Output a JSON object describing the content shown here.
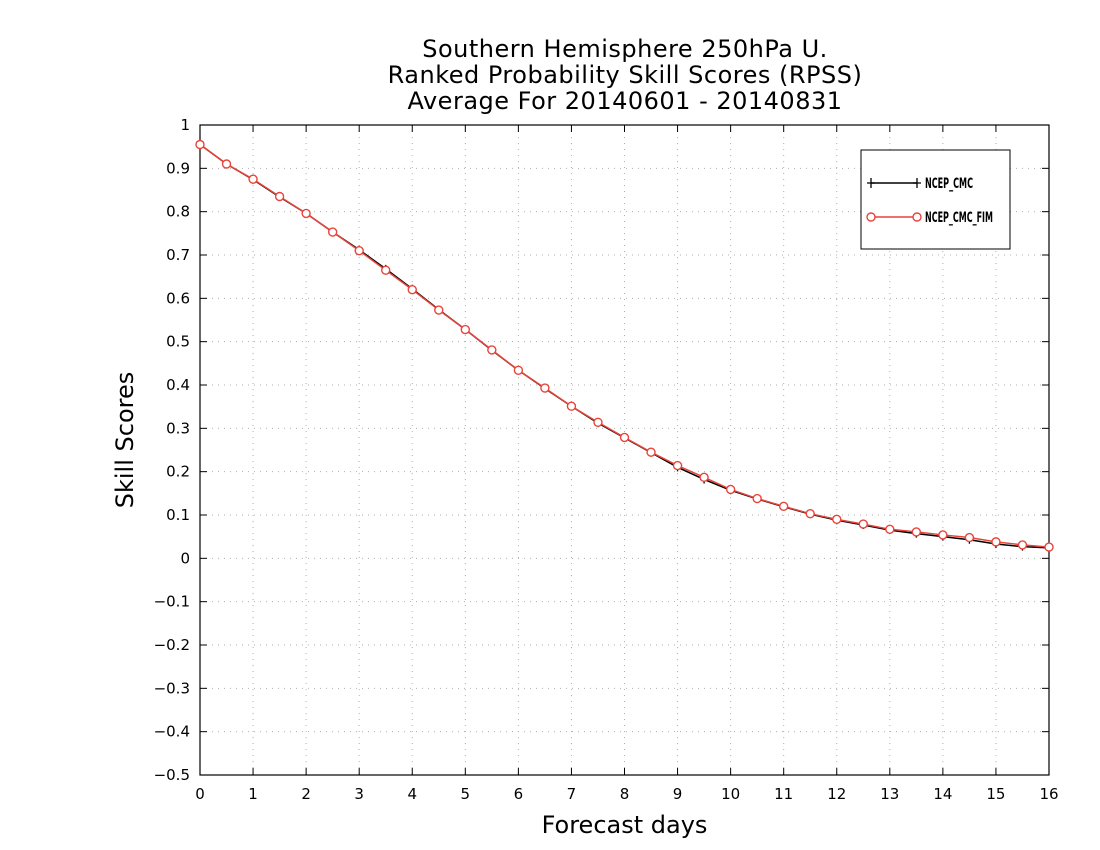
{
  "chart_data": {
    "type": "line",
    "title": [
      "Southern Hemisphere 250hPa U.",
      "Ranked Probability Skill Scores (RPSS)",
      "Average For 20140601 - 20140831"
    ],
    "xlabel": "Forecast days",
    "ylabel": "Skill Scores",
    "xlim": [
      0,
      16
    ],
    "ylim": [
      -0.5,
      1
    ],
    "xticks": [
      0,
      1,
      2,
      3,
      4,
      5,
      6,
      7,
      8,
      9,
      10,
      11,
      12,
      13,
      14,
      15,
      16
    ],
    "yticks": [
      -0.5,
      -0.4,
      -0.3,
      -0.2,
      -0.1,
      0,
      0.1,
      0.2,
      0.3,
      0.4,
      0.5,
      0.6,
      0.7,
      0.8,
      0.9,
      1
    ],
    "ytick_labels": [
      "−0.5",
      "−0.4",
      "−0.3",
      "−0.2",
      "−0.1",
      "0",
      "0.1",
      "0.2",
      "0.3",
      "0.4",
      "0.5",
      "0.6",
      "0.7",
      "0.8",
      "0.9",
      "1"
    ],
    "grid": true,
    "legend_position": "top-right",
    "x": [
      0,
      0.5,
      1,
      1.5,
      2,
      2.5,
      3,
      3.5,
      4,
      4.5,
      5,
      5.5,
      6,
      6.5,
      7,
      7.5,
      8,
      8.5,
      9,
      9.5,
      10,
      10.5,
      11,
      11.5,
      12,
      12.5,
      13,
      13.5,
      14,
      14.5,
      15,
      15.5,
      16
    ],
    "series": [
      {
        "name": "NCEP_CMC",
        "color": "#000000",
        "marker": "plus",
        "values": [
          0.955,
          0.91,
          0.874,
          0.834,
          0.796,
          0.753,
          0.712,
          0.668,
          0.622,
          0.574,
          0.528,
          0.48,
          0.434,
          0.392,
          0.351,
          0.312,
          0.278,
          0.244,
          0.21,
          0.182,
          0.157,
          0.137,
          0.119,
          0.102,
          0.088,
          0.077,
          0.065,
          0.057,
          0.05,
          0.043,
          0.033,
          0.027,
          0.024
        ]
      },
      {
        "name": "NCEP_CMC_FIM",
        "color": "#e8443a",
        "marker": "circle",
        "values": [
          0.955,
          0.91,
          0.875,
          0.835,
          0.796,
          0.753,
          0.71,
          0.665,
          0.62,
          0.573,
          0.528,
          0.481,
          0.434,
          0.393,
          0.351,
          0.314,
          0.279,
          0.245,
          0.214,
          0.187,
          0.159,
          0.138,
          0.12,
          0.103,
          0.09,
          0.079,
          0.067,
          0.061,
          0.054,
          0.048,
          0.038,
          0.031,
          0.026
        ]
      }
    ]
  }
}
